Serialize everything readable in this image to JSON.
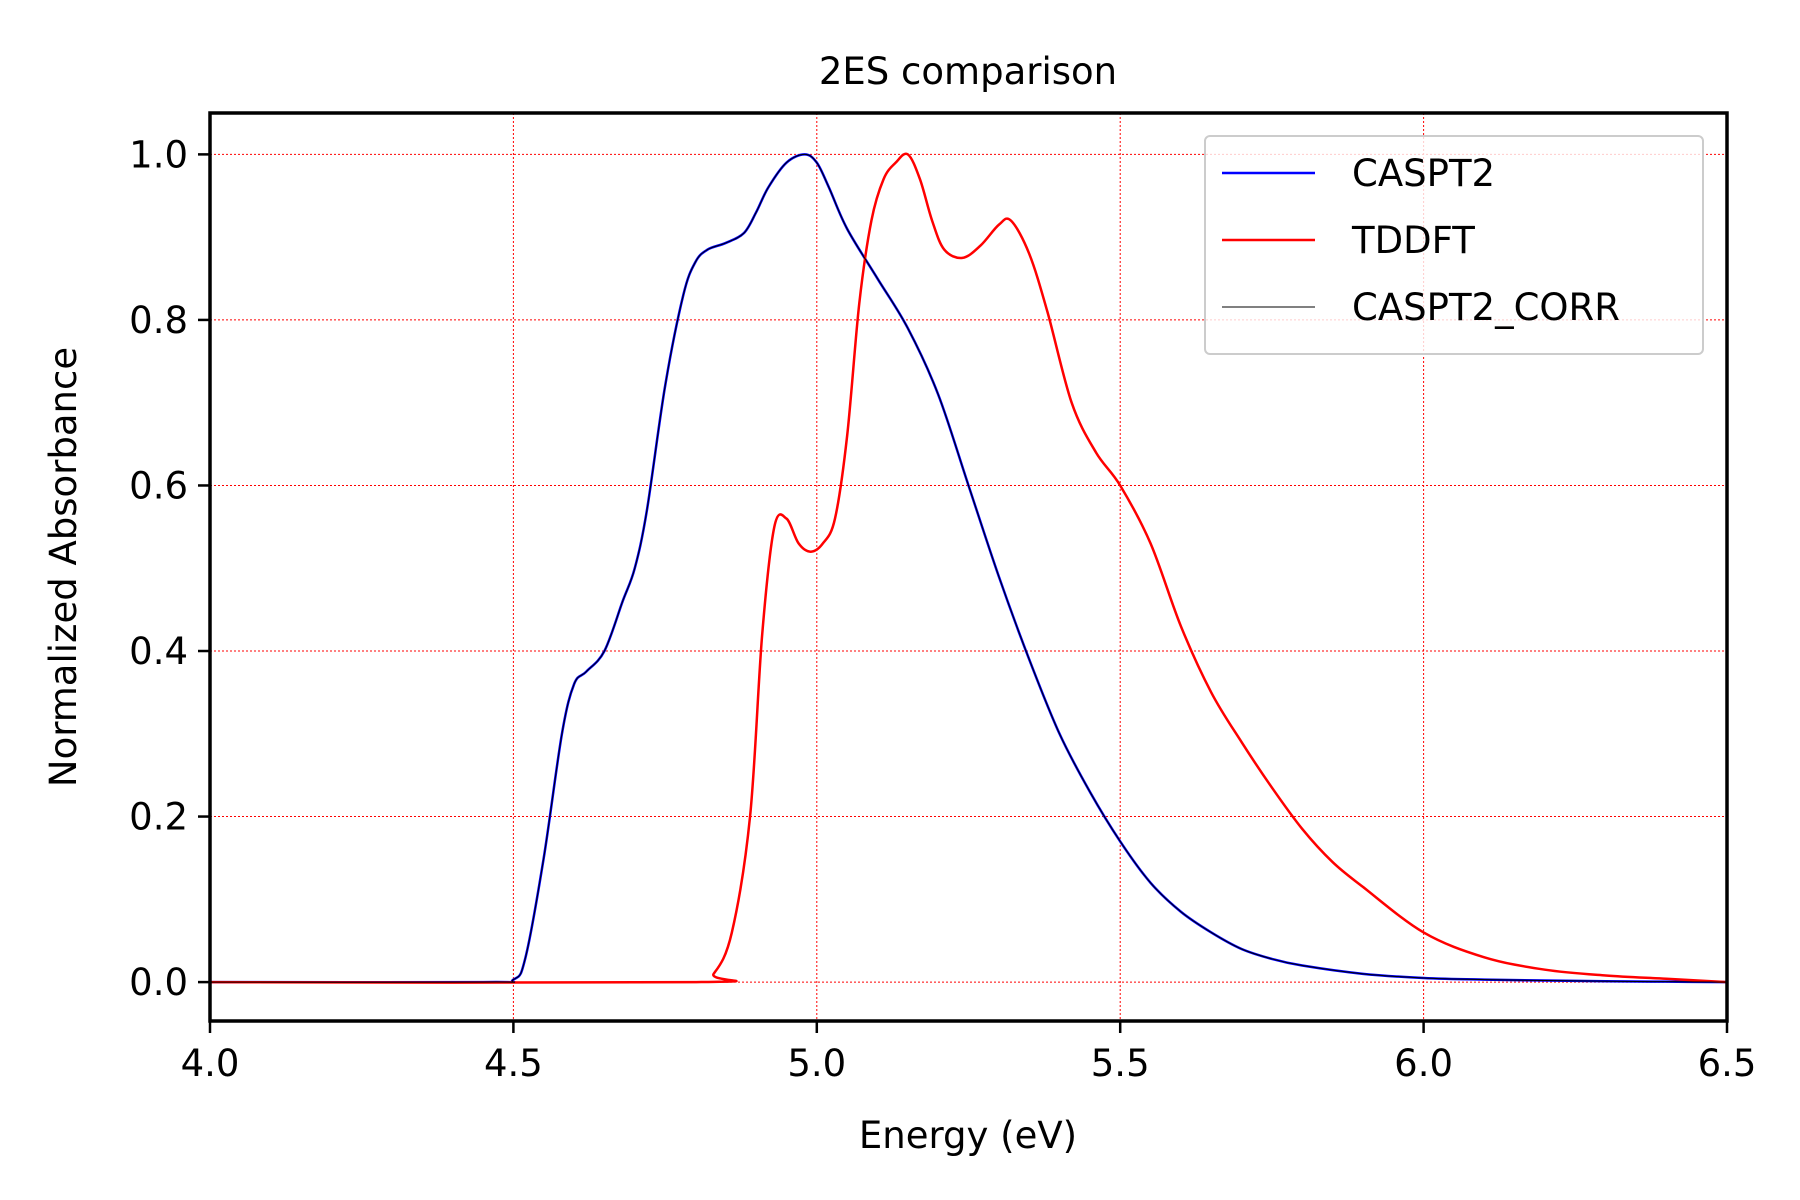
{
  "chart_data": {
    "type": "line",
    "title": "2ES comparison",
    "xlabel": "Energy (eV)",
    "ylabel": "Normalized Absorbance",
    "xlim": [
      4.0,
      6.5
    ],
    "ylim": [
      -0.047,
      1.05
    ],
    "x_ticks": [
      "4.0",
      "4.5",
      "5.0",
      "5.5",
      "6.0",
      "6.5"
    ],
    "y_ticks": [
      "0.0",
      "0.2",
      "0.4",
      "0.6",
      "0.8",
      "1.0"
    ],
    "grid": true,
    "grid_color": "#ff0000",
    "legend_position": "top-right",
    "series": [
      {
        "name": "CASPT2",
        "color": "#0000ff",
        "x": [
          4.0,
          4.45,
          4.5,
          4.52,
          4.55,
          4.58,
          4.6,
          4.62,
          4.65,
          4.68,
          4.7,
          4.72,
          4.75,
          4.78,
          4.8,
          4.82,
          4.85,
          4.88,
          4.9,
          4.92,
          4.95,
          4.98,
          5.0,
          5.02,
          5.05,
          5.1,
          5.15,
          5.2,
          5.25,
          5.3,
          5.35,
          5.4,
          5.45,
          5.5,
          5.55,
          5.6,
          5.65,
          5.7,
          5.75,
          5.8,
          5.9,
          6.0,
          6.1,
          6.2,
          6.3,
          6.4,
          6.5
        ],
        "y": [
          0.0,
          0.0,
          0.003,
          0.03,
          0.15,
          0.3,
          0.36,
          0.375,
          0.4,
          0.46,
          0.5,
          0.57,
          0.72,
          0.83,
          0.87,
          0.885,
          0.893,
          0.905,
          0.93,
          0.96,
          0.99,
          1.0,
          0.99,
          0.96,
          0.91,
          0.85,
          0.79,
          0.71,
          0.6,
          0.49,
          0.39,
          0.3,
          0.23,
          0.17,
          0.12,
          0.085,
          0.06,
          0.04,
          0.028,
          0.02,
          0.01,
          0.005,
          0.003,
          0.002,
          0.001,
          0.0005,
          0.0
        ]
      },
      {
        "name": "TDDFT",
        "color": "#ff0000",
        "x": [
          4.0,
          4.8,
          4.83,
          4.86,
          4.89,
          4.91,
          4.93,
          4.95,
          4.97,
          4.99,
          5.01,
          5.03,
          5.05,
          5.07,
          5.09,
          5.11,
          5.13,
          5.15,
          5.17,
          5.19,
          5.21,
          5.24,
          5.27,
          5.3,
          5.32,
          5.35,
          5.38,
          5.42,
          5.46,
          5.5,
          5.55,
          5.6,
          5.65,
          5.7,
          5.75,
          5.8,
          5.85,
          5.9,
          6.0,
          6.1,
          6.2,
          6.3,
          6.4,
          6.5
        ],
        "y": [
          0.0,
          0.0,
          0.01,
          0.06,
          0.2,
          0.42,
          0.55,
          0.56,
          0.53,
          0.52,
          0.53,
          0.56,
          0.66,
          0.82,
          0.92,
          0.97,
          0.99,
          1.0,
          0.97,
          0.92,
          0.885,
          0.875,
          0.89,
          0.915,
          0.92,
          0.88,
          0.81,
          0.7,
          0.64,
          0.6,
          0.53,
          0.43,
          0.35,
          0.29,
          0.235,
          0.185,
          0.145,
          0.115,
          0.06,
          0.03,
          0.015,
          0.008,
          0.004,
          0.0
        ]
      },
      {
        "name": "CASPT2_CORR",
        "color": "#000000",
        "x": [
          4.0,
          4.45,
          4.5,
          4.52,
          4.55,
          4.58,
          4.6,
          4.62,
          4.65,
          4.68,
          4.7,
          4.72,
          4.75,
          4.78,
          4.8,
          4.82,
          4.85,
          4.88,
          4.9,
          4.92,
          4.95,
          4.98,
          5.0,
          5.02,
          5.05,
          5.1,
          5.15,
          5.2,
          5.25,
          5.3,
          5.35,
          5.4,
          5.45,
          5.5,
          5.55,
          5.6,
          5.65,
          5.7,
          5.75,
          5.8,
          5.9,
          6.0,
          6.1,
          6.2,
          6.3,
          6.4,
          6.5
        ],
        "y": [
          0.0,
          0.0,
          0.003,
          0.03,
          0.15,
          0.3,
          0.36,
          0.375,
          0.4,
          0.46,
          0.5,
          0.57,
          0.72,
          0.83,
          0.87,
          0.885,
          0.893,
          0.905,
          0.93,
          0.96,
          0.99,
          1.0,
          0.99,
          0.96,
          0.91,
          0.85,
          0.79,
          0.71,
          0.6,
          0.49,
          0.39,
          0.3,
          0.23,
          0.17,
          0.12,
          0.085,
          0.06,
          0.04,
          0.028,
          0.02,
          0.01,
          0.005,
          0.003,
          0.002,
          0.001,
          0.0005,
          0.0
        ]
      }
    ]
  }
}
